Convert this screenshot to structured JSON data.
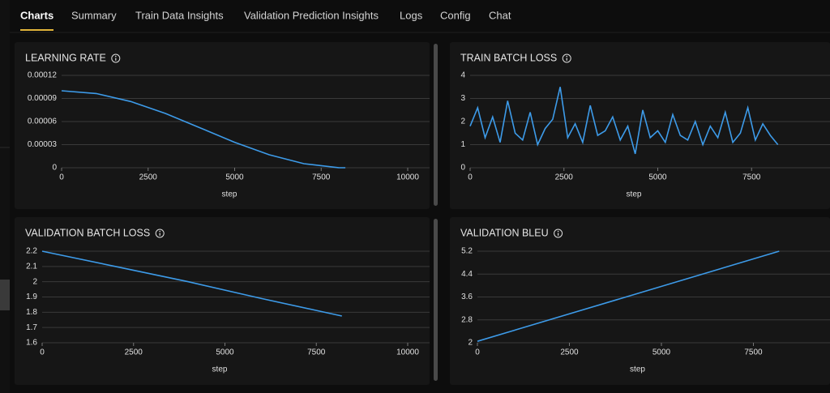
{
  "tabs": [
    "Charts",
    "Summary",
    "Train Data Insights",
    "Validation Prediction Insights",
    "Logs",
    "Config",
    "Chat"
  ],
  "chart_data": [
    {
      "type": "line",
      "title": "LEARNING RATE",
      "x_label": "step",
      "color": "#3d9be9",
      "x": [
        0,
        1000,
        2000,
        3000,
        4000,
        5000,
        6000,
        7000,
        8000,
        8200
      ],
      "values": [
        0.0001,
        9.64e-05,
        8.6e-05,
        7.05e-05,
        5.19e-05,
        3.31e-05,
        1.68e-05,
        5.3e-06,
        1e-07,
        0
      ],
      "xlim": [
        0,
        10000
      ],
      "ylim": [
        0,
        0.00012
      ],
      "xticks": [
        0,
        2500,
        5000,
        7500,
        10000
      ],
      "yticks": [
        0,
        3e-05,
        6e-05,
        9e-05,
        0.00012
      ],
      "grid": true
    },
    {
      "type": "line",
      "title": "TRAIN BATCH LOSS",
      "x_label": "step",
      "color": "#3d9be9",
      "x": [
        0,
        200,
        400,
        600,
        800,
        1000,
        1200,
        1400,
        1600,
        1800,
        2000,
        2200,
        2400,
        2600,
        2800,
        3000,
        3200,
        3400,
        3600,
        3800,
        4000,
        4200,
        4400,
        4600,
        4800,
        5000,
        5200,
        5400,
        5600,
        5800,
        6000,
        6200,
        6400,
        6600,
        6800,
        7000,
        7200,
        7400,
        7600,
        7800,
        8000,
        8200
      ],
      "values": [
        1.8,
        2.6,
        1.3,
        2.2,
        1.1,
        2.9,
        1.5,
        1.2,
        2.4,
        1.0,
        1.7,
        2.1,
        3.5,
        1.3,
        1.9,
        1.1,
        2.7,
        1.4,
        1.6,
        2.2,
        1.2,
        1.8,
        0.6,
        2.5,
        1.3,
        1.6,
        1.1,
        2.3,
        1.4,
        1.2,
        2.0,
        1.0,
        1.8,
        1.3,
        2.4,
        1.1,
        1.5,
        2.6,
        1.2,
        1.9,
        1.4,
        1.0
      ],
      "xlim": [
        0,
        10000
      ],
      "ylim": [
        0,
        4
      ],
      "xticks": [
        0,
        2500,
        5000,
        7500
      ],
      "yticks": [
        0,
        1,
        2,
        3,
        4
      ],
      "grid": true
    },
    {
      "type": "line",
      "title": "VALIDATION BATCH LOSS",
      "x_label": "step",
      "color": "#3d9be9",
      "x": [
        0,
        2000,
        4000,
        6000,
        8200
      ],
      "values": [
        2.2,
        2.1,
        2.0,
        1.89,
        1.775
      ],
      "xlim": [
        0,
        10000
      ],
      "ylim": [
        1.6,
        2.2
      ],
      "xticks": [
        0,
        2500,
        5000,
        7500,
        10000
      ],
      "yticks": [
        1.6,
        1.7,
        1.8,
        1.9,
        2,
        2.1,
        2.2
      ],
      "grid": true
    },
    {
      "type": "line",
      "title": "VALIDATION BLEU",
      "x_label": "step",
      "color": "#3d9be9",
      "x": [
        0,
        8200
      ],
      "values": [
        2.05,
        5.2
      ],
      "xlim": [
        0,
        10000
      ],
      "ylim": [
        2,
        5.2
      ],
      "xticks": [
        0,
        2500,
        5000,
        7500
      ],
      "yticks": [
        2,
        2.8,
        3.6,
        4.4,
        5.2
      ],
      "grid": true
    }
  ]
}
